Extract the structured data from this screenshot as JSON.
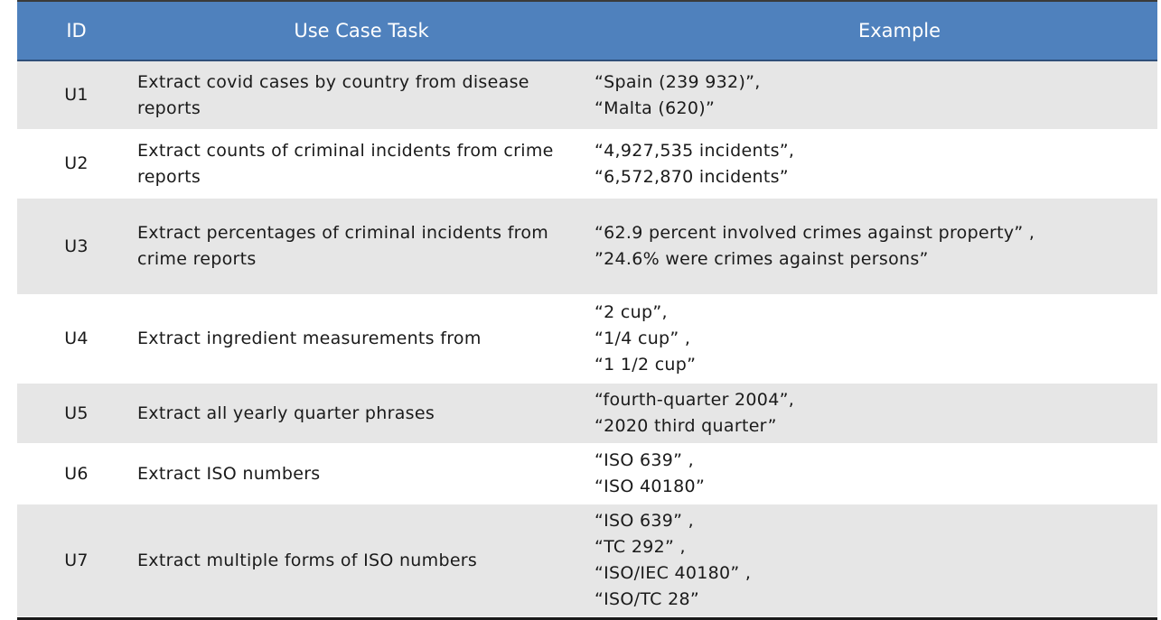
{
  "table": {
    "headers": {
      "id": "ID",
      "task": "Use Case Task",
      "example": "Example"
    },
    "rows": [
      {
        "id": "U1",
        "task": [
          "Extract covid cases by country from disease",
          "reports"
        ],
        "example": [
          "“Spain (239 932)”,",
          "“Malta (620)”"
        ]
      },
      {
        "id": "U2",
        "task": [
          "Extract counts of criminal incidents from crime",
          "reports"
        ],
        "example": [
          "“4,927,535 incidents”,",
          "“6,572,870 incidents”"
        ]
      },
      {
        "id": "U3",
        "task": [
          "Extract percentages of criminal incidents from",
          "crime reports"
        ],
        "example": [
          "“62.9 percent involved crimes against property” ,",
          "”24.6% were crimes against persons”"
        ]
      },
      {
        "id": "U4",
        "task": [
          "Extract ingredient measurements from"
        ],
        "example": [
          "“2 cup”,",
          "“1/4 cup” ,",
          "“1 1/2 cup”"
        ]
      },
      {
        "id": "U5",
        "task": [
          "Extract all yearly quarter phrases"
        ],
        "example": [
          "“fourth-quarter 2004”,",
          "“2020 third quarter”"
        ]
      },
      {
        "id": "U6",
        "task": [
          "Extract ISO numbers"
        ],
        "example": [
          "“ISO 639” ,",
          "“ISO 40180”"
        ]
      },
      {
        "id": "U7",
        "task": [
          "Extract multiple forms of ISO numbers"
        ],
        "example": [
          "“ISO 639” ,",
          "“TC 292” ,",
          "“ISO/IEC 40180” ,",
          "“ISO/TC 28”"
        ]
      }
    ]
  }
}
